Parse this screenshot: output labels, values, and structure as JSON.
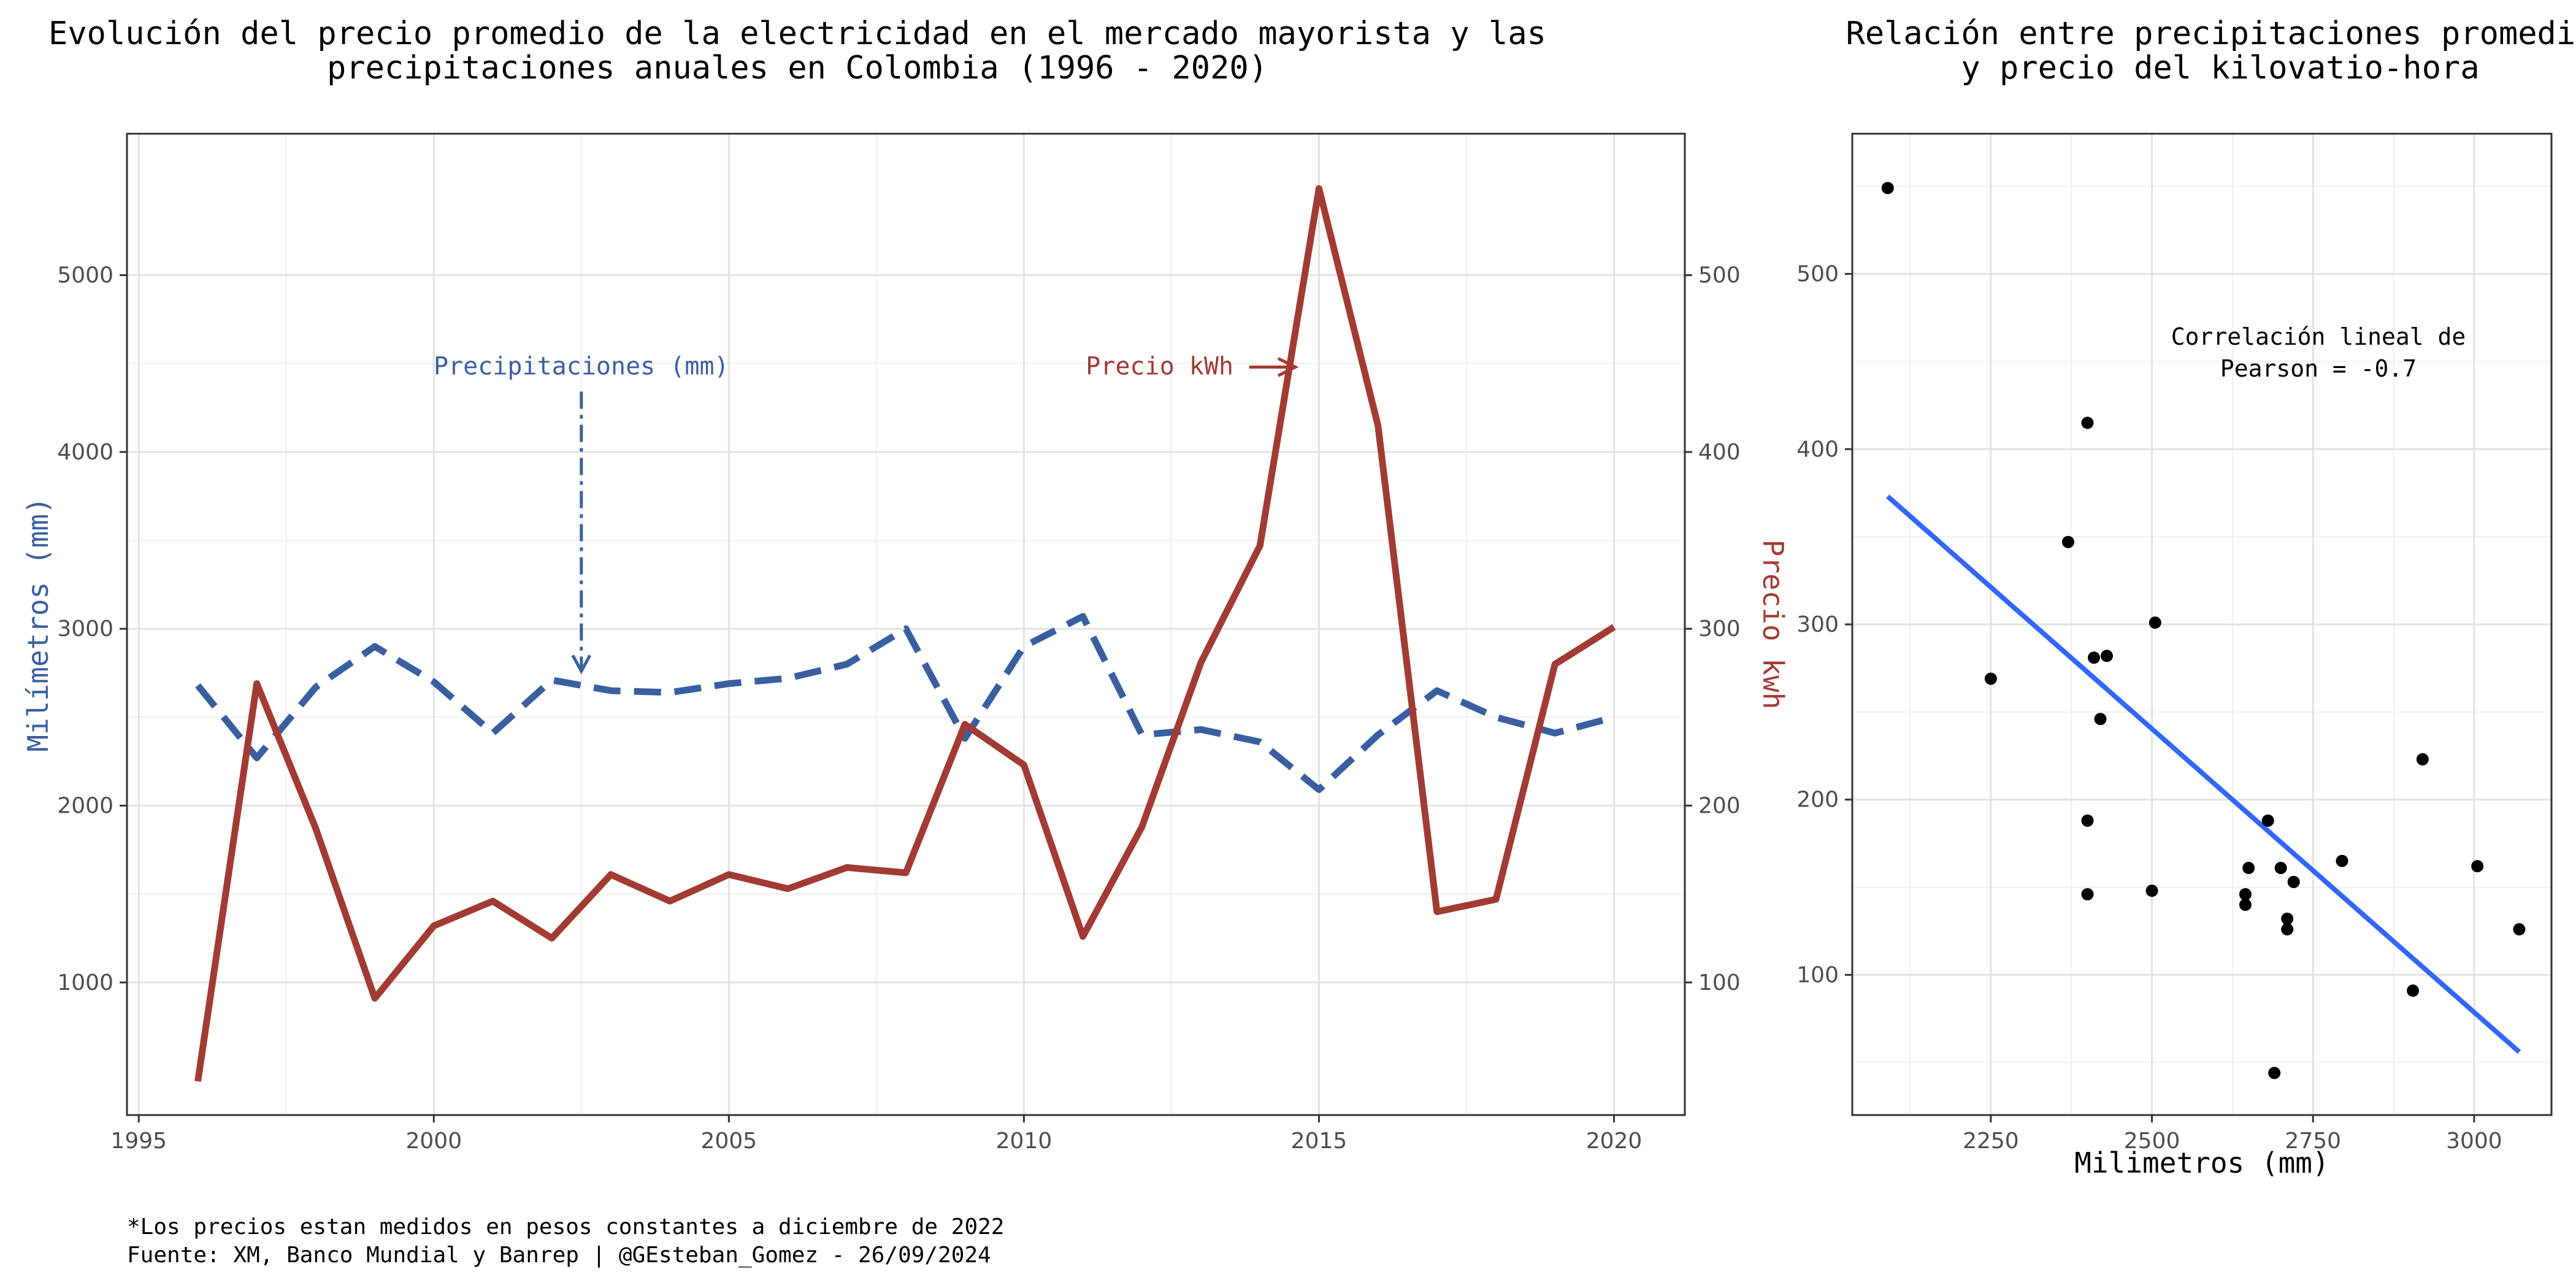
{
  "chart_data": [
    {
      "type": "line",
      "title": "Evolución del precio promedio de la electricidad en el mercado mayorista y las\nprecipitaciones anuales en Colombia (1996 - 2020)",
      "x": [
        1996,
        1997,
        1998,
        1999,
        2000,
        2001,
        2002,
        2003,
        2004,
        2005,
        2006,
        2007,
        2008,
        2009,
        2010,
        2011,
        2012,
        2013,
        2014,
        2015,
        2016,
        2017,
        2018,
        2019,
        2020
      ],
      "xticks": [
        1995,
        2000,
        2005,
        2010,
        2015,
        2020
      ],
      "xlim": [
        1994.8,
        2021.2
      ],
      "ylabel": "Milímetros (mm)",
      "ylim": [
        250,
        5800
      ],
      "yticks": [
        1000,
        2000,
        3000,
        4000,
        5000
      ],
      "y2label": "Precio kwh",
      "y2lim": [
        25,
        580
      ],
      "y2ticks": [
        100,
        200,
        300,
        400,
        500
      ],
      "grid": true,
      "series": [
        {
          "axis": "left",
          "style": "dashed",
          "color": "#3a5fa0",
          "values": [
            2680,
            2270,
            2670,
            2900,
            2700,
            2410,
            2710,
            2650,
            2640,
            2690,
            2720,
            2800,
            3000,
            2380,
            2900,
            3070,
            2400,
            2430,
            2360,
            2090,
            2400,
            2650,
            2500,
            2410,
            2500
          ]
        },
        {
          "axis": "right",
          "style": "solid",
          "color": "#a23b34",
          "values": [
            44,
            269,
            187,
            91,
            132,
            146,
            125,
            161,
            146,
            161,
            153,
            165,
            162,
            246,
            223,
            126,
            188,
            281,
            347,
            549,
            415,
            140,
            147,
            280,
            301
          ]
        }
      ],
      "annotations": [
        {
          "text": "Precipitaciones (mm)",
          "color": "#3a5fa0",
          "x": 2002.5,
          "y": 4480
        },
        {
          "text": "Precio kWh",
          "color": "#a23b34",
          "x": 2012.3,
          "y": 4480
        }
      ]
    },
    {
      "type": "scatter",
      "title": "Relación entre precipitaciones promedio\ny precio del kilovatio-hora",
      "xlabel": "Milimetros (mm)",
      "ylabel": "",
      "xlim": [
        2035,
        3120
      ],
      "ylim": [
        20,
        580
      ],
      "xticks": [
        2250,
        2500,
        2750,
        3000
      ],
      "yticks": [
        100,
        200,
        300,
        400,
        500
      ],
      "grid": true,
      "points": [
        [
          2090,
          549
        ],
        [
          2250,
          269
        ],
        [
          2370,
          347
        ],
        [
          2400,
          415
        ],
        [
          2410,
          281
        ],
        [
          2430,
          282
        ],
        [
          2505,
          301
        ],
        [
          2420,
          246
        ],
        [
          2400,
          188
        ],
        [
          2400,
          146
        ],
        [
          2500,
          148
        ],
        [
          2680,
          188
        ],
        [
          2920,
          223
        ],
        [
          2650,
          161
        ],
        [
          2700,
          161
        ],
        [
          2795,
          165
        ],
        [
          2720,
          153
        ],
        [
          2645,
          146
        ],
        [
          2645,
          140
        ],
        [
          2710,
          132
        ],
        [
          2710,
          126
        ],
        [
          3005,
          162
        ],
        [
          3070,
          126
        ],
        [
          2905,
          91
        ],
        [
          2690,
          44
        ]
      ],
      "regression": {
        "x": [
          2090,
          3070
        ],
        "y": [
          373,
          56
        ],
        "color": "#3366ff"
      },
      "annotation": "Correlación lineal de\nPearson = -0.7"
    }
  ],
  "footnote": {
    "line1": "*Los precios estan medidos en pesos constantes a diciembre de 2022",
    "line2": "Fuente: XM, Banco Mundial y Banrep | @GEsteban_Gomez - 26/09/2024"
  }
}
